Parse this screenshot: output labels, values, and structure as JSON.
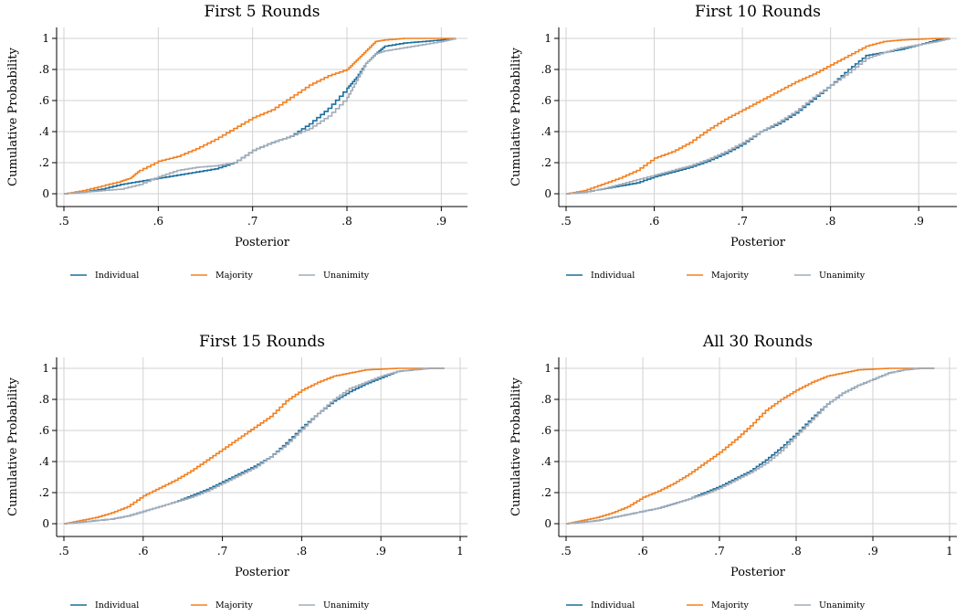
{
  "colors": {
    "individual": "#1a6e9e",
    "majority": "#f28020",
    "unanimity": "#a3acb9",
    "grid": "#d2d2d2"
  },
  "chart_data": [
    {
      "type": "line",
      "title": "First 5 Rounds",
      "xlabel": "Posterior",
      "ylabel": "Cumulative Probability",
      "xlim": [
        0.5,
        0.92
      ],
      "ylim": [
        0,
        1
      ],
      "xticks": [
        0.5,
        0.6,
        0.7,
        0.8,
        0.9
      ],
      "xtick_labels": [
        ".5",
        ".6",
        ".7",
        ".8",
        ".9"
      ],
      "yticks": [
        0,
        0.2,
        0.4,
        0.6,
        0.8,
        1
      ],
      "ytick_labels": [
        "0",
        ".2",
        ".4",
        ".6",
        ".8",
        "1"
      ],
      "grid": true,
      "legend": "bottom",
      "series": [
        {
          "name": "Individual",
          "color": "individual",
          "x": [
            0.5,
            0.52,
            0.54,
            0.56,
            0.58,
            0.6,
            0.62,
            0.64,
            0.66,
            0.68,
            0.7,
            0.72,
            0.74,
            0.76,
            0.78,
            0.8,
            0.81,
            0.82,
            0.83,
            0.84,
            0.86,
            0.88,
            0.9,
            0.915
          ],
          "y": [
            0,
            0.01,
            0.03,
            0.06,
            0.08,
            0.1,
            0.12,
            0.14,
            0.16,
            0.2,
            0.28,
            0.33,
            0.37,
            0.45,
            0.55,
            0.68,
            0.75,
            0.84,
            0.9,
            0.95,
            0.97,
            0.98,
            0.99,
            1
          ]
        },
        {
          "name": "Majority",
          "color": "majority",
          "x": [
            0.5,
            0.52,
            0.54,
            0.56,
            0.57,
            0.58,
            0.6,
            0.62,
            0.64,
            0.66,
            0.68,
            0.7,
            0.72,
            0.74,
            0.76,
            0.78,
            0.8,
            0.81,
            0.82,
            0.83,
            0.84,
            0.86,
            0.88,
            0.9,
            0.915
          ],
          "y": [
            0,
            0.02,
            0.05,
            0.08,
            0.1,
            0.15,
            0.21,
            0.24,
            0.29,
            0.35,
            0.42,
            0.49,
            0.54,
            0.62,
            0.7,
            0.76,
            0.8,
            0.86,
            0.92,
            0.98,
            0.99,
            1,
            1,
            1,
            1
          ]
        },
        {
          "name": "Unanimity",
          "color": "unanimity",
          "x": [
            0.5,
            0.52,
            0.54,
            0.56,
            0.58,
            0.6,
            0.62,
            0.64,
            0.66,
            0.68,
            0.7,
            0.72,
            0.74,
            0.76,
            0.78,
            0.8,
            0.81,
            0.82,
            0.83,
            0.84,
            0.86,
            0.88,
            0.9,
            0.915
          ],
          "y": [
            0,
            0.01,
            0.02,
            0.03,
            0.06,
            0.11,
            0.15,
            0.17,
            0.18,
            0.2,
            0.28,
            0.33,
            0.37,
            0.42,
            0.5,
            0.62,
            0.73,
            0.84,
            0.9,
            0.92,
            0.94,
            0.96,
            0.98,
            1
          ]
        }
      ]
    },
    {
      "type": "line",
      "title": "First 10 Rounds",
      "xlabel": "Posterior",
      "ylabel": "Cumulative Probability",
      "xlim": [
        0.5,
        0.935
      ],
      "ylim": [
        0,
        1
      ],
      "xticks": [
        0.5,
        0.6,
        0.7,
        0.8,
        0.9
      ],
      "xtick_labels": [
        ".5",
        ".6",
        ".7",
        ".8",
        ".9"
      ],
      "yticks": [
        0,
        0.2,
        0.4,
        0.6,
        0.8,
        1
      ],
      "ytick_labels": [
        "0",
        ".2",
        ".4",
        ".6",
        ".8",
        "1"
      ],
      "grid": true,
      "legend": "bottom",
      "series": [
        {
          "name": "Individual",
          "color": "individual",
          "x": [
            0.5,
            0.52,
            0.54,
            0.56,
            0.58,
            0.6,
            0.62,
            0.64,
            0.66,
            0.68,
            0.7,
            0.72,
            0.74,
            0.76,
            0.78,
            0.8,
            0.82,
            0.84,
            0.86,
            0.88,
            0.9,
            0.92,
            0.935
          ],
          "y": [
            0,
            0.01,
            0.03,
            0.05,
            0.07,
            0.11,
            0.14,
            0.17,
            0.21,
            0.26,
            0.32,
            0.4,
            0.45,
            0.52,
            0.61,
            0.7,
            0.8,
            0.89,
            0.91,
            0.93,
            0.96,
            0.99,
            1
          ]
        },
        {
          "name": "Majority",
          "color": "majority",
          "x": [
            0.5,
            0.52,
            0.54,
            0.56,
            0.58,
            0.6,
            0.62,
            0.64,
            0.66,
            0.68,
            0.7,
            0.72,
            0.74,
            0.76,
            0.78,
            0.8,
            0.82,
            0.84,
            0.86,
            0.88,
            0.9,
            0.92,
            0.935
          ],
          "y": [
            0,
            0.02,
            0.06,
            0.1,
            0.15,
            0.23,
            0.27,
            0.33,
            0.41,
            0.48,
            0.54,
            0.6,
            0.66,
            0.72,
            0.77,
            0.83,
            0.89,
            0.95,
            0.98,
            0.99,
            0.995,
            1,
            1
          ]
        },
        {
          "name": "Unanimity",
          "color": "unanimity",
          "x": [
            0.5,
            0.52,
            0.54,
            0.56,
            0.58,
            0.6,
            0.62,
            0.64,
            0.66,
            0.68,
            0.7,
            0.72,
            0.74,
            0.76,
            0.78,
            0.8,
            0.82,
            0.84,
            0.86,
            0.88,
            0.9,
            0.92,
            0.935
          ],
          "y": [
            0,
            0.01,
            0.03,
            0.06,
            0.09,
            0.12,
            0.15,
            0.18,
            0.22,
            0.27,
            0.33,
            0.4,
            0.46,
            0.53,
            0.62,
            0.7,
            0.78,
            0.87,
            0.91,
            0.94,
            0.96,
            0.98,
            1
          ]
        }
      ]
    },
    {
      "type": "line",
      "title": "First 15 Rounds",
      "xlabel": "Posterior",
      "ylabel": "Cumulative Probability",
      "xlim": [
        0.5,
        1.0
      ],
      "ylim": [
        0,
        1
      ],
      "xticks": [
        0.5,
        0.6,
        0.7,
        0.8,
        0.9,
        1.0
      ],
      "xtick_labels": [
        ".5",
        ".6",
        ".7",
        ".8",
        ".9",
        "1"
      ],
      "yticks": [
        0,
        0.2,
        0.4,
        0.6,
        0.8,
        1
      ],
      "ytick_labels": [
        "0",
        ".2",
        ".4",
        ".6",
        ".8",
        "1"
      ],
      "grid": true,
      "legend": "bottom",
      "series": [
        {
          "name": "Individual",
          "color": "individual",
          "x": [
            0.5,
            0.52,
            0.54,
            0.56,
            0.58,
            0.6,
            0.62,
            0.64,
            0.66,
            0.68,
            0.7,
            0.72,
            0.74,
            0.76,
            0.78,
            0.8,
            0.82,
            0.84,
            0.86,
            0.88,
            0.9,
            0.92,
            0.94,
            0.96,
            0.98
          ],
          "y": [
            0,
            0.01,
            0.02,
            0.03,
            0.05,
            0.08,
            0.11,
            0.14,
            0.18,
            0.22,
            0.27,
            0.32,
            0.37,
            0.43,
            0.52,
            0.62,
            0.71,
            0.79,
            0.85,
            0.9,
            0.94,
            0.98,
            0.99,
            1,
            1
          ]
        },
        {
          "name": "Majority",
          "color": "majority",
          "x": [
            0.5,
            0.52,
            0.54,
            0.56,
            0.58,
            0.6,
            0.62,
            0.64,
            0.66,
            0.68,
            0.7,
            0.72,
            0.74,
            0.76,
            0.78,
            0.8,
            0.82,
            0.84,
            0.86,
            0.88,
            0.9,
            0.92,
            0.94,
            0.96,
            0.98
          ],
          "y": [
            0,
            0.02,
            0.04,
            0.07,
            0.11,
            0.18,
            0.23,
            0.28,
            0.34,
            0.41,
            0.48,
            0.55,
            0.62,
            0.69,
            0.79,
            0.86,
            0.91,
            0.95,
            0.97,
            0.99,
            0.995,
            1,
            1,
            1,
            1
          ]
        },
        {
          "name": "Unanimity",
          "color": "unanimity",
          "x": [
            0.5,
            0.52,
            0.54,
            0.56,
            0.58,
            0.6,
            0.62,
            0.64,
            0.66,
            0.68,
            0.7,
            0.72,
            0.74,
            0.76,
            0.78,
            0.8,
            0.82,
            0.84,
            0.86,
            0.88,
            0.9,
            0.92,
            0.94,
            0.96,
            0.98
          ],
          "y": [
            0,
            0.01,
            0.02,
            0.03,
            0.05,
            0.08,
            0.11,
            0.14,
            0.17,
            0.21,
            0.26,
            0.31,
            0.36,
            0.43,
            0.51,
            0.61,
            0.71,
            0.8,
            0.87,
            0.91,
            0.95,
            0.98,
            0.99,
            1,
            1
          ]
        }
      ]
    },
    {
      "type": "line",
      "title": "All 30 Rounds",
      "xlabel": "Posterior",
      "ylabel": "Cumulative Probability",
      "xlim": [
        0.5,
        1.0
      ],
      "ylim": [
        0,
        1
      ],
      "xticks": [
        0.5,
        0.6,
        0.7,
        0.8,
        0.9,
        1.0
      ],
      "xtick_labels": [
        ".5",
        ".6",
        ".7",
        ".8",
        ".9",
        "1"
      ],
      "yticks": [
        0,
        0.2,
        0.4,
        0.6,
        0.8,
        1
      ],
      "ytick_labels": [
        "0",
        ".2",
        ".4",
        ".6",
        ".8",
        "1"
      ],
      "grid": true,
      "legend": "bottom",
      "series": [
        {
          "name": "Individual",
          "color": "individual",
          "x": [
            0.5,
            0.52,
            0.54,
            0.56,
            0.58,
            0.6,
            0.62,
            0.64,
            0.66,
            0.68,
            0.7,
            0.72,
            0.74,
            0.76,
            0.78,
            0.8,
            0.82,
            0.84,
            0.86,
            0.88,
            0.9,
            0.92,
            0.94,
            0.96,
            0.98
          ],
          "y": [
            0,
            0.01,
            0.02,
            0.04,
            0.06,
            0.08,
            0.1,
            0.13,
            0.16,
            0.2,
            0.24,
            0.29,
            0.34,
            0.41,
            0.49,
            0.58,
            0.68,
            0.77,
            0.84,
            0.89,
            0.93,
            0.97,
            0.99,
            1,
            1
          ]
        },
        {
          "name": "Majority",
          "color": "majority",
          "x": [
            0.5,
            0.52,
            0.54,
            0.56,
            0.58,
            0.6,
            0.62,
            0.64,
            0.66,
            0.68,
            0.7,
            0.72,
            0.74,
            0.76,
            0.78,
            0.8,
            0.82,
            0.84,
            0.86,
            0.88,
            0.9,
            0.92,
            0.94,
            0.96,
            0.98
          ],
          "y": [
            0,
            0.02,
            0.04,
            0.07,
            0.11,
            0.17,
            0.21,
            0.26,
            0.32,
            0.39,
            0.46,
            0.54,
            0.63,
            0.73,
            0.8,
            0.86,
            0.91,
            0.95,
            0.97,
            0.99,
            0.995,
            1,
            1,
            1,
            1
          ]
        },
        {
          "name": "Unanimity",
          "color": "unanimity",
          "x": [
            0.5,
            0.52,
            0.54,
            0.56,
            0.58,
            0.6,
            0.62,
            0.64,
            0.66,
            0.68,
            0.7,
            0.72,
            0.74,
            0.76,
            0.78,
            0.8,
            0.82,
            0.84,
            0.86,
            0.88,
            0.9,
            0.92,
            0.94,
            0.96,
            0.98
          ],
          "y": [
            0,
            0.01,
            0.02,
            0.04,
            0.06,
            0.08,
            0.1,
            0.13,
            0.16,
            0.19,
            0.23,
            0.28,
            0.33,
            0.39,
            0.47,
            0.57,
            0.67,
            0.77,
            0.84,
            0.89,
            0.93,
            0.97,
            0.99,
            1,
            1
          ]
        }
      ]
    }
  ]
}
